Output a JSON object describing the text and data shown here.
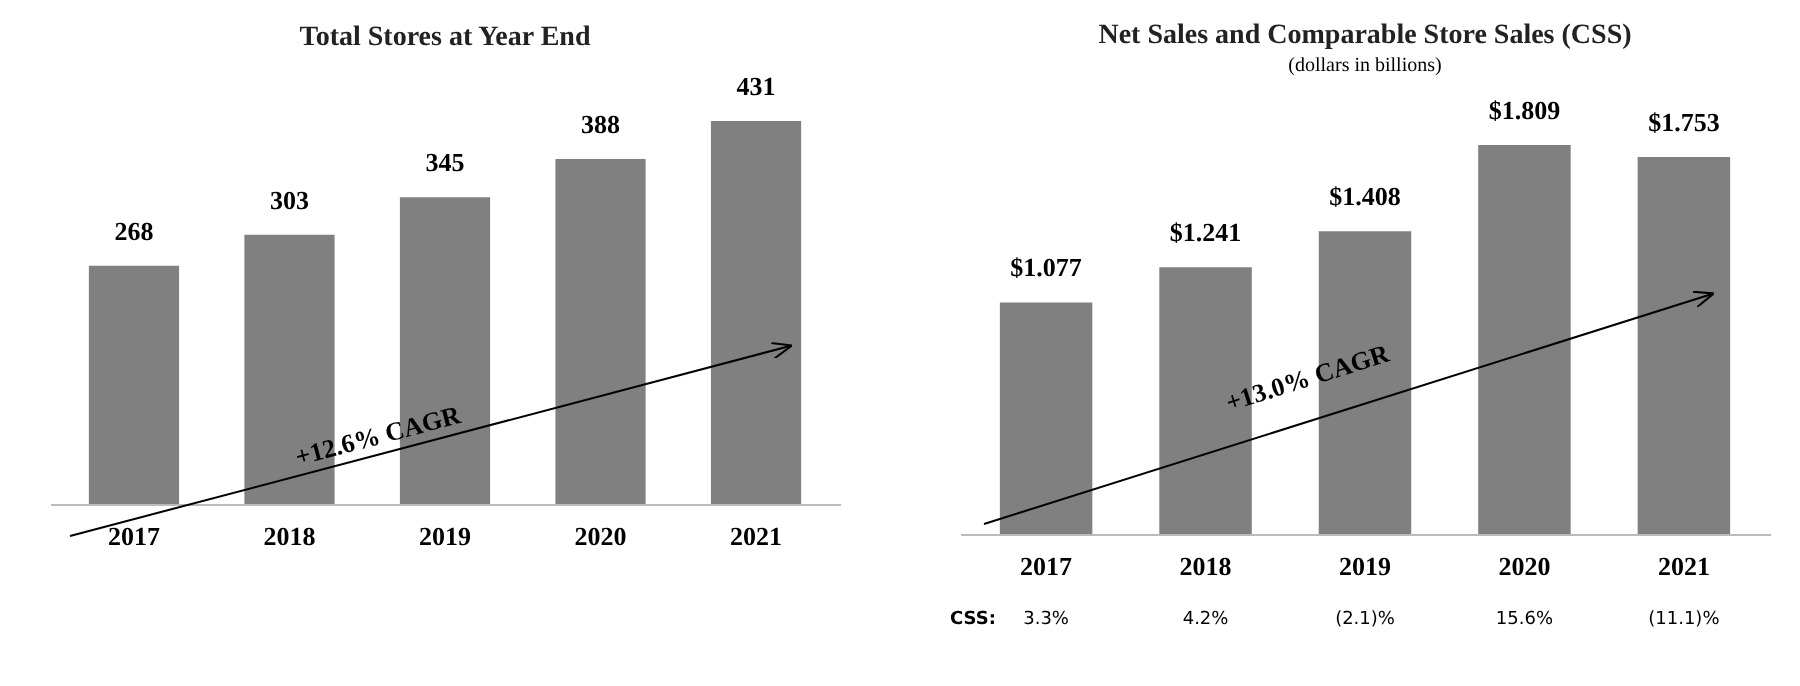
{
  "chart_data": [
    {
      "type": "bar",
      "title": "Total Stores at Year End",
      "categories": [
        "2017",
        "2018",
        "2019",
        "2020",
        "2021"
      ],
      "values": [
        268,
        303,
        345,
        388,
        431
      ],
      "color": "#808080",
      "data_labels": true,
      "grid": false,
      "annotations": [
        "+12.6% CAGR"
      ]
    },
    {
      "type": "bar",
      "title": "Net Sales and Comparable  Store Sales (CSS)",
      "subtitle": "(dollars in billions)",
      "categories": [
        "2017",
        "2018",
        "2019",
        "2020",
        "2021"
      ],
      "values": [
        1.077,
        1.241,
        1.408,
        1.809,
        1.753
      ],
      "value_labels": [
        "$1.077",
        "$1.241",
        "$1.408",
        "$1.809",
        "$1.753"
      ],
      "color": "#808080",
      "grid": false,
      "annotations": [
        "+13.0% CAGR",
        "CSS:",
        "3.3%",
        "4.2%",
        "(2.1)%",
        "15.6%",
        "(11.1)%"
      ]
    }
  ]
}
